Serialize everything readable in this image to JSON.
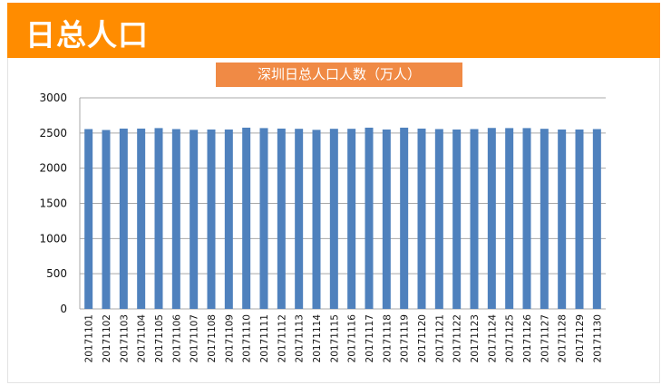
{
  "header": {
    "title": "日总人口"
  },
  "chart_data": {
    "type": "bar",
    "title": "深圳日总人口人数（万人）",
    "xlabel": "",
    "ylabel": "",
    "ylim": [
      0,
      3000
    ],
    "yticks": [
      0,
      500,
      1000,
      1500,
      2000,
      2500,
      3000
    ],
    "grid": true,
    "color": "#4F81BD",
    "categories": [
      "20171101",
      "20171102",
      "20171103",
      "20171104",
      "20171105",
      "20171106",
      "20171107",
      "20171108",
      "20171109",
      "20171110",
      "20171111",
      "20171112",
      "20171113",
      "20171114",
      "20171115",
      "20171116",
      "20171117",
      "20171118",
      "20171119",
      "20171120",
      "20171121",
      "20171122",
      "20171123",
      "20171124",
      "20171125",
      "20171126",
      "20171127",
      "20171128",
      "20171129",
      "20171130"
    ],
    "values": [
      2556,
      2543,
      2563,
      2563,
      2570,
      2556,
      2545,
      2550,
      2550,
      2576,
      2570,
      2563,
      2560,
      2545,
      2560,
      2560,
      2576,
      2550,
      2576,
      2563,
      2556,
      2550,
      2556,
      2572,
      2570,
      2570,
      2560,
      2550,
      2550,
      2556
    ]
  }
}
